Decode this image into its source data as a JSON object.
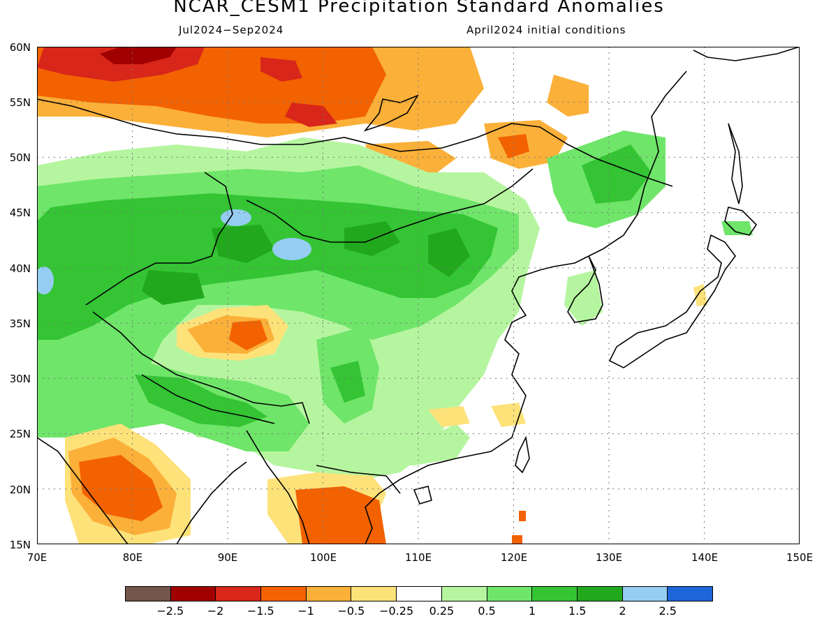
{
  "title": "NCAR_CESM1 Precipitation Standard Anomalies",
  "period": "Jul2024−Sep2024",
  "init": "April2024 initial conditions",
  "map": {
    "lon_range": [
      70,
      150
    ],
    "lat_range": [
      15,
      60
    ],
    "x_ticks": [
      "70E",
      "80E",
      "90E",
      "100E",
      "110E",
      "120E",
      "130E",
      "140E",
      "150E"
    ],
    "y_ticks": [
      "60N",
      "55N",
      "50N",
      "45N",
      "40N",
      "35N",
      "30N",
      "25N",
      "20N",
      "15N"
    ],
    "grid": "dotted"
  },
  "colorbar": {
    "colors": [
      "#74554a",
      "#a00000",
      "#d8261a",
      "#f26200",
      "#fbb039",
      "#fde27a",
      "#ffffff",
      "#b6f5a0",
      "#6fe56a",
      "#34c434",
      "#22a81c",
      "#96cdf2",
      "#1e66d8"
    ],
    "labels": [
      "−2.5",
      "−2",
      "−1.5",
      "−1",
      "−0.5",
      "−0.25",
      "0.25",
      "0.5",
      "1",
      "1.5",
      "2",
      "2.5"
    ]
  }
}
